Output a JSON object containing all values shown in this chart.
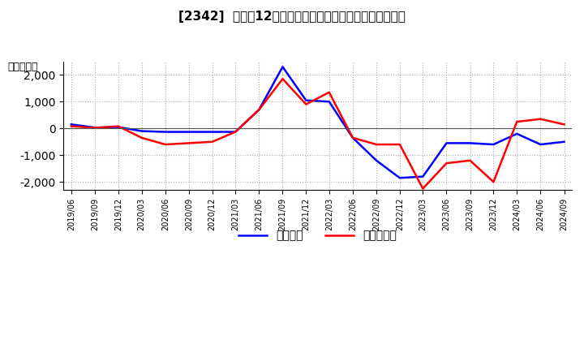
{
  "title": "[2342]  利益の12か月移動合計の対前年同期増減額の推移",
  "ylabel": "（百万円）",
  "legend_labels": [
    "経常利益",
    "当期純利益"
  ],
  "line_colors": [
    "#0000ff",
    "#ff0000"
  ],
  "background_color": "#ffffff",
  "plot_bg_color": "#ffffff",
  "grid_color": "#aaaaaa",
  "ylim": [
    -2300,
    2500
  ],
  "yticks": [
    -2000,
    -1000,
    0,
    1000,
    2000
  ],
  "dates": [
    "2019/06",
    "2019/09",
    "2019/12",
    "2020/03",
    "2020/06",
    "2020/09",
    "2020/12",
    "2021/03",
    "2021/06",
    "2021/09",
    "2021/12",
    "2022/03",
    "2022/06",
    "2022/09",
    "2022/12",
    "2023/03",
    "2023/06",
    "2023/09",
    "2023/12",
    "2024/03",
    "2024/06",
    "2024/09"
  ],
  "keijo_rieki": [
    150,
    30,
    50,
    -100,
    -130,
    -130,
    -130,
    -130,
    700,
    2300,
    1050,
    1000,
    -350,
    -1200,
    -1850,
    -1800,
    -550,
    -550,
    -600,
    -200,
    -600,
    -500
  ],
  "touki_jurieki": [
    80,
    20,
    80,
    -350,
    -600,
    -550,
    -500,
    -130,
    700,
    1850,
    900,
    1350,
    -350,
    -600,
    -600,
    -2250,
    -1300,
    -1200,
    -2000,
    250,
    350,
    150
  ]
}
